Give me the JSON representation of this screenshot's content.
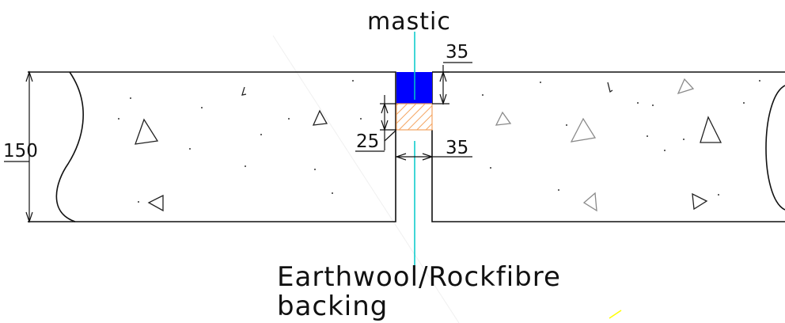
{
  "labels": {
    "mastic": "mastic",
    "backing_line1": "Earthwool/Rockfibre",
    "backing_line2": "backing"
  },
  "dimensions": {
    "slab_depth": "150",
    "mastic_depth": "35",
    "backing_depth": "25",
    "joint_width": "35"
  },
  "colors": {
    "mastic_fill": "#0000ff",
    "backing_hatch": "#f4a460",
    "leader": "#00c8c8",
    "outline": "#111111"
  }
}
